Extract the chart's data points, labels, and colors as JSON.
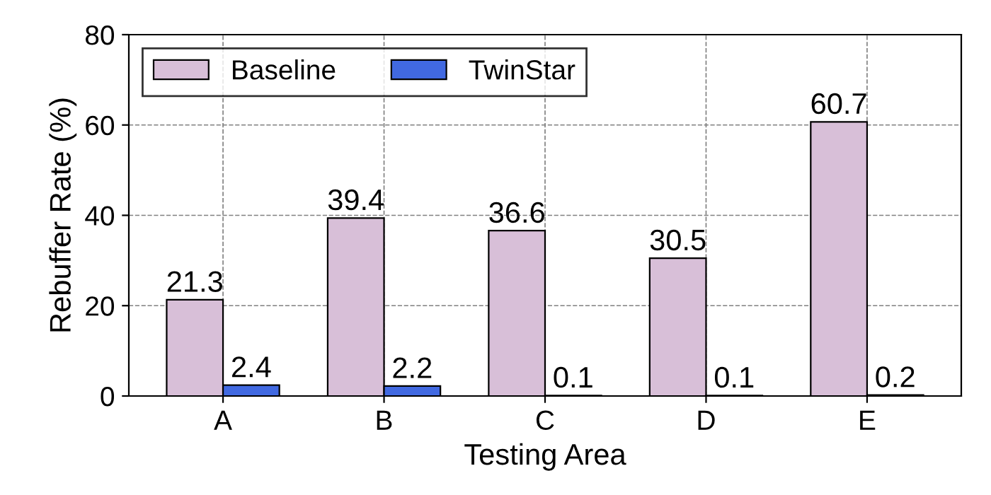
{
  "chart_data": {
    "type": "bar",
    "xlabel": "Testing Area",
    "ylabel": "Rebuffer Rate (%)",
    "categories": [
      "A",
      "B",
      "C",
      "D",
      "E"
    ],
    "series": [
      {
        "name": "Baseline",
        "color": "#d8bfd8",
        "values": [
          21.3,
          39.4,
          36.6,
          30.5,
          60.7
        ]
      },
      {
        "name": "TwinStar",
        "color": "#4169e1",
        "values": [
          2.4,
          2.2,
          0.1,
          0.1,
          0.2
        ]
      }
    ],
    "ylim": [
      0,
      80
    ],
    "yticks": [
      0,
      20,
      40,
      60,
      80
    ],
    "grid": true,
    "legend": "top left",
    "data_labels": true
  }
}
